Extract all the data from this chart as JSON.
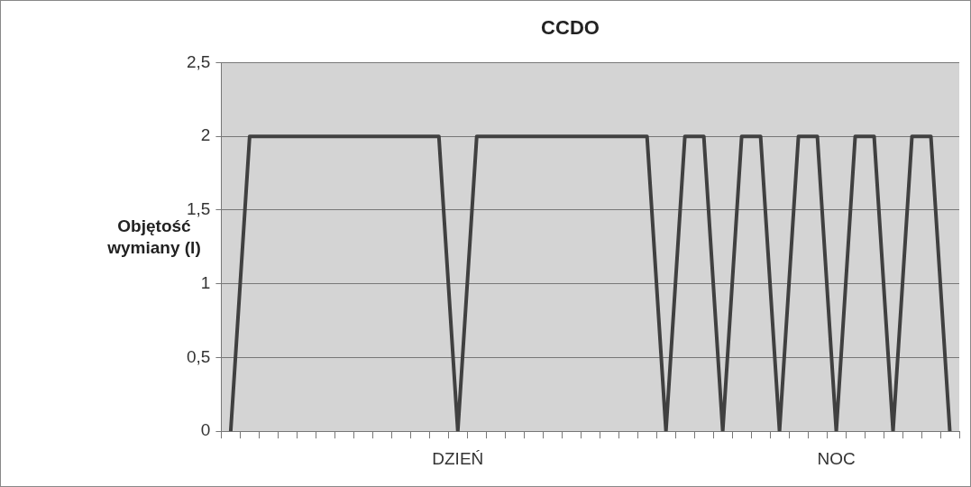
{
  "chart_data": {
    "type": "line",
    "title": "CCDO",
    "ylabel": "Objętość wymiany (l)",
    "categories": [
      null,
      null,
      null,
      null,
      null,
      null,
      null,
      null,
      null,
      null,
      null,
      null,
      "DZIEŃ",
      null,
      null,
      null,
      null,
      null,
      null,
      null,
      null,
      null,
      null,
      null,
      null,
      null,
      null,
      null,
      null,
      null,
      null,
      null,
      "NOC",
      null,
      null,
      null,
      null,
      null,
      null
    ],
    "series": [
      {
        "color": "#404040",
        "values": [
          0,
          2,
          2,
          2,
          2,
          2,
          2,
          2,
          2,
          2,
          2,
          2,
          0,
          2,
          2,
          2,
          2,
          2,
          2,
          2,
          2,
          2,
          2,
          0,
          2,
          2,
          0,
          2,
          2,
          0,
          2,
          2,
          0,
          2,
          2,
          0,
          2,
          2,
          0
        ]
      }
    ],
    "ylim": [
      0,
      2.5
    ],
    "yticks": [
      0,
      {
        "value": 0.5,
        "label": "0,5"
      },
      1,
      {
        "value": 1.5,
        "label": "1,5"
      },
      2,
      {
        "value": 2.5,
        "label": "2,5"
      }
    ],
    "grid": "y",
    "legend": false,
    "marker": "none",
    "line_style": "solid"
  }
}
